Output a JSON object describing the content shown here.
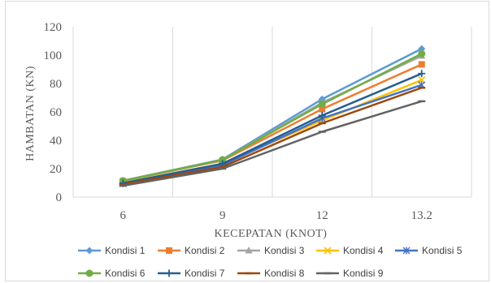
{
  "chart_data": {
    "type": "line",
    "title": "",
    "xlabel": "KECEPATAN (KNOT)",
    "ylabel": "HAMBATAN (KN)",
    "categories": [
      "6",
      "9",
      "12",
      "13.2"
    ],
    "ylim": [
      0,
      120
    ],
    "yticks": [
      0,
      20,
      40,
      60,
      80,
      100,
      120
    ],
    "grid": "vertical",
    "legend_position": "bottom",
    "series": [
      {
        "name": "Kondisi 1",
        "values": [
          11.5,
          26.5,
          69,
          104.5
        ],
        "color": "#5B9BD5",
        "marker": "diamond"
      },
      {
        "name": "Kondisi 2",
        "values": [
          11.2,
          25.8,
          62,
          93.5
        ],
        "color": "#ED7D31",
        "marker": "square"
      },
      {
        "name": "Kondisi 3",
        "values": [
          11.3,
          26.2,
          66.5,
          99.5
        ],
        "color": "#A5A5A5",
        "marker": "triangle"
      },
      {
        "name": "Kondisi 4",
        "values": [
          10,
          23.5,
          54,
          82.5
        ],
        "color": "#FFC000",
        "marker": "x"
      },
      {
        "name": "Kondisi 5",
        "values": [
          9.5,
          22.5,
          55.5,
          79
        ],
        "color": "#4472C4",
        "marker": "star"
      },
      {
        "name": "Kondisi 6",
        "values": [
          11.5,
          26.3,
          65.5,
          101
        ],
        "color": "#70AD47",
        "marker": "circle"
      },
      {
        "name": "Kondisi 7",
        "values": [
          9.8,
          23.5,
          57.5,
          87
        ],
        "color": "#255E91",
        "marker": "plus"
      },
      {
        "name": "Kondisi 8",
        "values": [
          9,
          21.2,
          52,
          77
        ],
        "color": "#9E480E",
        "marker": "dash"
      },
      {
        "name": "Kondisi 9",
        "values": [
          8,
          20,
          46,
          67.5
        ],
        "color": "#636363",
        "marker": "dash"
      }
    ]
  }
}
